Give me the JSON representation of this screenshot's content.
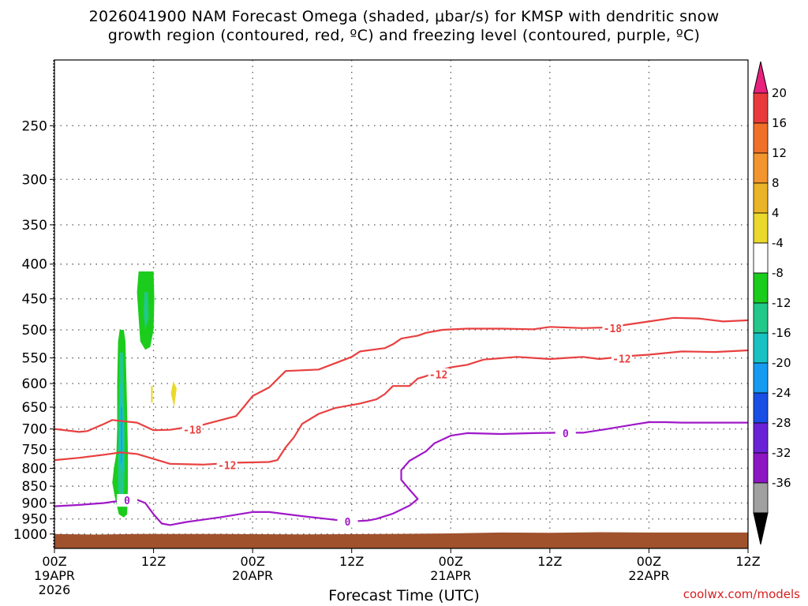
{
  "title_line1": "2026041900 NAM Forecast Omega (shaded, μbar/s) for KMSP with dendritic snow",
  "title_line2": "growth region (contoured, red, ºC) and freezing level (contoured, purple, ºC)",
  "credit": "coolwx.com/models",
  "chart_data": {
    "type": "contour",
    "xlabel": "Forecast Time (UTC)",
    "ylabel": "",
    "x_ticks": [
      {
        "hour": 0,
        "label": "00Z",
        "sub": "19APR",
        "sub2": "2026"
      },
      {
        "hour": 12,
        "label": "12Z",
        "sub": "",
        "sub2": ""
      },
      {
        "hour": 24,
        "label": "00Z",
        "sub": "20APR",
        "sub2": ""
      },
      {
        "hour": 36,
        "label": "12Z",
        "sub": "",
        "sub2": ""
      },
      {
        "hour": 48,
        "label": "00Z",
        "sub": "21APR",
        "sub2": ""
      },
      {
        "hour": 60,
        "label": "12Z",
        "sub": "",
        "sub2": ""
      },
      {
        "hour": 72,
        "label": "00Z",
        "sub": "22APR",
        "sub2": ""
      },
      {
        "hour": 84,
        "label": "12Z",
        "sub": "",
        "sub2": ""
      }
    ],
    "y_ticks": [
      250,
      300,
      350,
      400,
      450,
      500,
      550,
      600,
      650,
      700,
      750,
      800,
      850,
      900,
      950,
      1000
    ],
    "x_range": [
      0,
      84
    ],
    "y_range_hpa": [
      1050,
      200
    ],
    "grid": true,
    "colorbar": {
      "labels": [
        "20",
        "16",
        "12",
        "8",
        "4",
        "-4",
        "-8",
        "-12",
        "-16",
        "-20",
        "-24",
        "-28",
        "-32",
        "-36"
      ],
      "top_color": "#e8207e",
      "bottom_color": "#000000",
      "colors": [
        "#e83a3a",
        "#f0702a",
        "#f2952e",
        "#e9b428",
        "#ead82c",
        "#ffffff",
        "#1ccc1c",
        "#21c88a",
        "#19c2c2",
        "#169bf0",
        "#1a4fe6",
        "#6a22d6",
        "#8c16c2",
        "#a0a0a0"
      ]
    },
    "series": [
      {
        "name": "-18",
        "color": "#e84040",
        "label_hour": 16.7,
        "label_p": 702,
        "points": [
          [
            0,
            700
          ],
          [
            3,
            707
          ],
          [
            4,
            705
          ],
          [
            6,
            688
          ],
          [
            7,
            679
          ],
          [
            10,
            685
          ],
          [
            12,
            703
          ],
          [
            14,
            702
          ],
          [
            18,
            690
          ],
          [
            22,
            670
          ],
          [
            23,
            648
          ],
          [
            24,
            626
          ],
          [
            26,
            608
          ],
          [
            28,
            575
          ],
          [
            32,
            572
          ],
          [
            33,
            566
          ],
          [
            36,
            548
          ],
          [
            37,
            538
          ],
          [
            40,
            532
          ],
          [
            41,
            525
          ],
          [
            42,
            515
          ],
          [
            44,
            510
          ],
          [
            45,
            505
          ],
          [
            47,
            500
          ],
          [
            50,
            498
          ],
          [
            54,
            498
          ],
          [
            58,
            499
          ],
          [
            60,
            495
          ],
          [
            64,
            497
          ],
          [
            67,
            496
          ],
          [
            72,
            486
          ],
          [
            75,
            480
          ],
          [
            78,
            481
          ],
          [
            81,
            486
          ],
          [
            84,
            484
          ]
        ]
      },
      {
        "name": "-18",
        "color": "#e84040",
        "label_hour": 67.6,
        "label_p": 497,
        "points": []
      },
      {
        "name": "-12",
        "color": "#e84040",
        "label_hour": 20.9,
        "label_p": 791,
        "points": [
          [
            0,
            778
          ],
          [
            3,
            772
          ],
          [
            6,
            764
          ],
          [
            8,
            758
          ],
          [
            10,
            762
          ],
          [
            12,
            775
          ],
          [
            14,
            788
          ],
          [
            18,
            790
          ],
          [
            22,
            785
          ],
          [
            26,
            783
          ],
          [
            27,
            778
          ],
          [
            28,
            745
          ],
          [
            29,
            720
          ],
          [
            30,
            688
          ],
          [
            32,
            665
          ],
          [
            34,
            652
          ],
          [
            37,
            642
          ],
          [
            39,
            633
          ],
          [
            40,
            622
          ],
          [
            41,
            605
          ],
          [
            43,
            605
          ],
          [
            44,
            590
          ],
          [
            45,
            585
          ],
          [
            47,
            572
          ],
          [
            48,
            568
          ],
          [
            50,
            563
          ],
          [
            52,
            553
          ],
          [
            56,
            548
          ],
          [
            60,
            552
          ],
          [
            62,
            550
          ],
          [
            64,
            548
          ],
          [
            66,
            552
          ],
          [
            68,
            549
          ],
          [
            70,
            546
          ],
          [
            72,
            544
          ],
          [
            76,
            538
          ],
          [
            80,
            539
          ],
          [
            84,
            536
          ]
        ]
      },
      {
        "name": "-12",
        "color": "#e84040",
        "label_hour": 46.5,
        "label_p": 582,
        "points": []
      },
      {
        "name": "-12",
        "color": "#e84040",
        "label_hour": 68.7,
        "label_p": 551,
        "points": []
      },
      {
        "name": "0",
        "color": "#a018c8",
        "label_hour": 8.8,
        "label_p": 892,
        "points": [
          [
            0,
            910
          ],
          [
            3,
            906
          ],
          [
            6,
            900
          ],
          [
            8,
            893
          ],
          [
            10,
            890
          ],
          [
            11,
            900
          ],
          [
            12,
            935
          ],
          [
            13,
            965
          ],
          [
            14,
            970
          ],
          [
            16,
            960
          ],
          [
            20,
            945
          ],
          [
            24,
            928
          ],
          [
            26,
            928
          ],
          [
            30,
            941
          ],
          [
            34,
            953
          ],
          [
            36,
            958
          ],
          [
            38,
            955
          ],
          [
            39,
            950
          ],
          [
            41,
            933
          ],
          [
            43,
            908
          ],
          [
            44,
            888
          ],
          [
            43,
            860
          ],
          [
            42,
            832
          ],
          [
            42,
            805
          ],
          [
            43,
            780
          ],
          [
            45,
            755
          ],
          [
            46,
            735
          ],
          [
            48,
            716
          ],
          [
            50,
            710
          ],
          [
            54,
            712
          ],
          [
            58,
            710
          ],
          [
            61,
            709
          ],
          [
            64,
            709
          ],
          [
            67,
            700
          ],
          [
            70,
            690
          ],
          [
            72,
            684
          ],
          [
            74,
            684
          ],
          [
            76,
            685
          ],
          [
            80,
            685
          ],
          [
            84,
            685
          ]
        ]
      },
      {
        "name": "0",
        "color": "#a018c8",
        "label_hour": 35.5,
        "label_p": 958,
        "points": []
      },
      {
        "name": "0",
        "color": "#a018c8",
        "label_hour": 61.9,
        "label_p": 710,
        "points": []
      }
    ],
    "omega_patches": [
      {
        "value": -4,
        "color": "#1ccc1c",
        "points": [
          [
            7.9,
            500
          ],
          [
            8.4,
            500
          ],
          [
            8.6,
            520
          ],
          [
            8.7,
            580
          ],
          [
            8.8,
            660
          ],
          [
            8.9,
            760
          ],
          [
            8.9,
            850
          ],
          [
            8.8,
            935
          ],
          [
            8.4,
            945
          ],
          [
            7.8,
            935
          ],
          [
            7.3,
            880
          ],
          [
            7.0,
            840
          ],
          [
            7.2,
            800
          ],
          [
            7.5,
            760
          ],
          [
            7.6,
            700
          ],
          [
            7.6,
            600
          ],
          [
            7.7,
            520
          ]
        ]
      },
      {
        "value": -8,
        "color": "#21c88a",
        "points": [
          [
            7.9,
            540
          ],
          [
            8.3,
            540
          ],
          [
            8.4,
            620
          ],
          [
            8.5,
            700
          ],
          [
            8.5,
            800
          ],
          [
            8.4,
            880
          ],
          [
            8.0,
            890
          ],
          [
            7.7,
            860
          ],
          [
            7.7,
            760
          ],
          [
            7.8,
            650
          ]
        ]
      },
      {
        "value": -12,
        "color": "#19c2c2",
        "points": [
          [
            8.0,
            600
          ],
          [
            8.2,
            600
          ],
          [
            8.3,
            700
          ],
          [
            8.3,
            800
          ],
          [
            8.1,
            820
          ],
          [
            7.9,
            780
          ],
          [
            7.9,
            690
          ]
        ]
      },
      {
        "value": -16,
        "color": "#169bf0",
        "points": [
          [
            8.05,
            650
          ],
          [
            8.2,
            650
          ],
          [
            8.2,
            780
          ],
          [
            8.05,
            790
          ]
        ]
      },
      {
        "value": -4,
        "color": "#1ccc1c",
        "points": [
          [
            10.2,
            410
          ],
          [
            12,
            410
          ],
          [
            12.1,
            450
          ],
          [
            12.0,
            500
          ],
          [
            11.6,
            530
          ],
          [
            11.0,
            535
          ],
          [
            10.4,
            520
          ],
          [
            10.2,
            480
          ],
          [
            10.0,
            440
          ]
        ]
      },
      {
        "value": -8,
        "color": "#21c88a",
        "points": [
          [
            10.9,
            440
          ],
          [
            11.3,
            440
          ],
          [
            11.4,
            480
          ],
          [
            11.0,
            500
          ],
          [
            10.8,
            470
          ]
        ]
      },
      {
        "value": 4,
        "color": "#ead82c",
        "points": [
          [
            11.7,
            605
          ],
          [
            11.9,
            605
          ],
          [
            11.9,
            640
          ],
          [
            11.7,
            640
          ]
        ]
      },
      {
        "value": 4,
        "color": "#ead82c",
        "points": [
          [
            14.4,
            595
          ],
          [
            14.8,
            610
          ],
          [
            14.5,
            650
          ],
          [
            14.1,
            620
          ]
        ]
      }
    ],
    "terrain_color": "#a0522d",
    "terrain_points": [
      [
        0,
        1000
      ],
      [
        5,
        1002
      ],
      [
        10,
        1000
      ],
      [
        20,
        1000
      ],
      [
        30,
        1001
      ],
      [
        40,
        1000
      ],
      [
        48,
        998
      ],
      [
        54,
        995
      ],
      [
        60,
        996
      ],
      [
        66,
        994
      ],
      [
        72,
        995
      ],
      [
        84,
        995
      ]
    ]
  }
}
